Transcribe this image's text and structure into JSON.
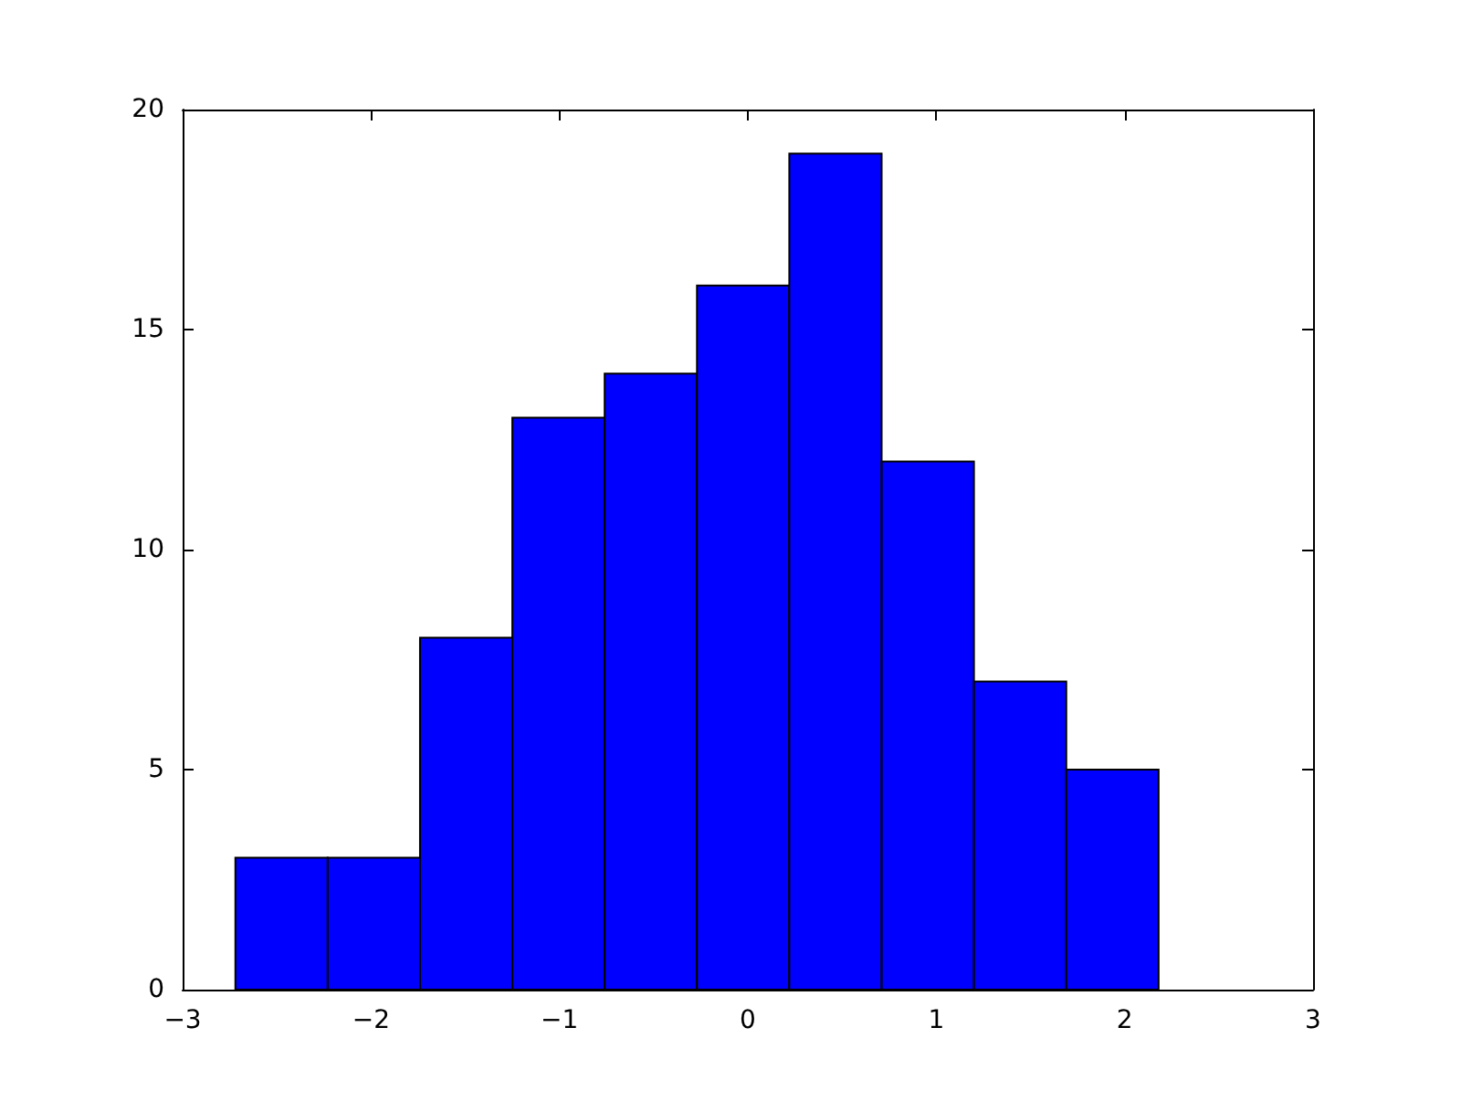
{
  "chart_data": {
    "type": "histogram",
    "bins": [
      -2.72,
      -2.23,
      -1.74,
      -1.25,
      -0.76,
      -0.27,
      0.22,
      0.71,
      1.2,
      1.69,
      2.18
    ],
    "values": [
      3,
      3,
      8,
      13,
      14,
      16,
      19,
      12,
      7,
      5
    ],
    "color": "#0000ff",
    "xlim": [
      -3,
      3
    ],
    "xticks": [
      -3,
      -2,
      -1,
      0,
      1,
      2,
      3
    ],
    "ylim": [
      0,
      20
    ],
    "yticks": [
      0,
      5,
      10,
      15,
      20
    ]
  }
}
